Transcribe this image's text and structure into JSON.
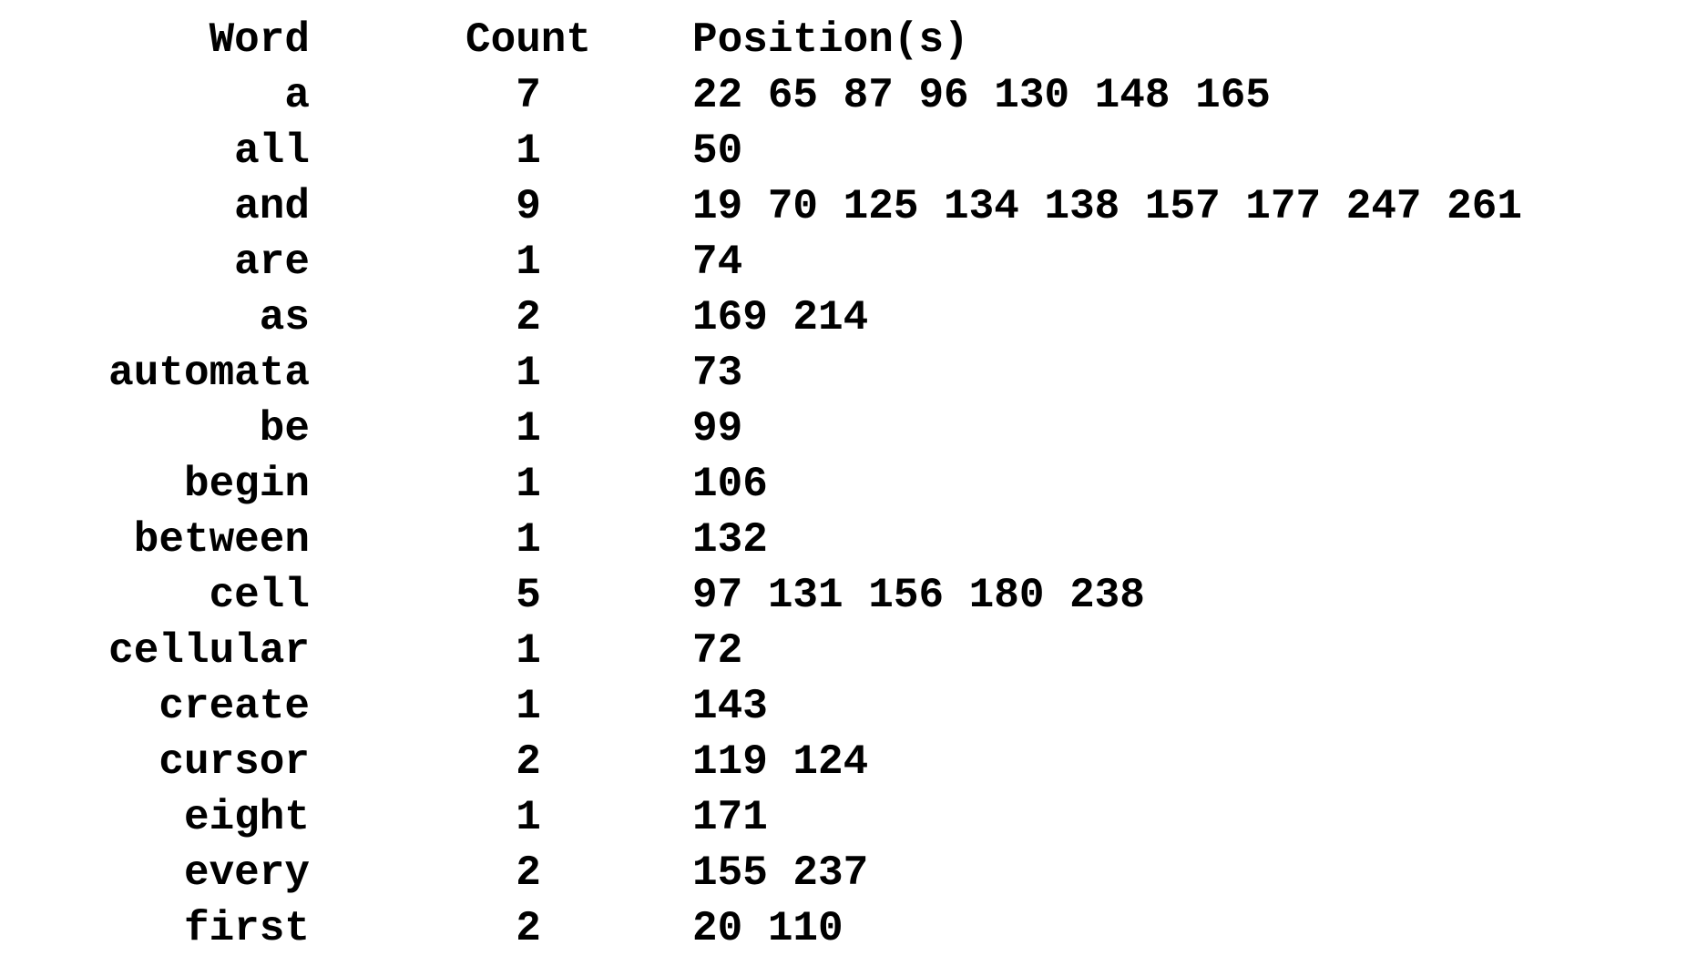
{
  "table": {
    "headers": {
      "word": "Word",
      "count": "Count",
      "positions": "Position(s)"
    },
    "rows": [
      {
        "word": "a",
        "count": "7",
        "positions": "22 65 87 96 130 148 165"
      },
      {
        "word": "all",
        "count": "1",
        "positions": "50"
      },
      {
        "word": "and",
        "count": "9",
        "positions": "19 70 125 134 138 157 177 247 261"
      },
      {
        "word": "are",
        "count": "1",
        "positions": "74"
      },
      {
        "word": "as",
        "count": "2",
        "positions": "169 214"
      },
      {
        "word": "automata",
        "count": "1",
        "positions": "73"
      },
      {
        "word": "be",
        "count": "1",
        "positions": "99"
      },
      {
        "word": "begin",
        "count": "1",
        "positions": "106"
      },
      {
        "word": "between",
        "count": "1",
        "positions": "132"
      },
      {
        "word": "cell",
        "count": "5",
        "positions": "97 131 156 180 238"
      },
      {
        "word": "cellular",
        "count": "1",
        "positions": "72"
      },
      {
        "word": "create",
        "count": "1",
        "positions": "143"
      },
      {
        "word": "cursor",
        "count": "2",
        "positions": "119 124"
      },
      {
        "word": "eight",
        "count": "1",
        "positions": "171"
      },
      {
        "word": "every",
        "count": "2",
        "positions": "155 237"
      },
      {
        "word": "first",
        "count": "2",
        "positions": "20 110"
      }
    ]
  }
}
